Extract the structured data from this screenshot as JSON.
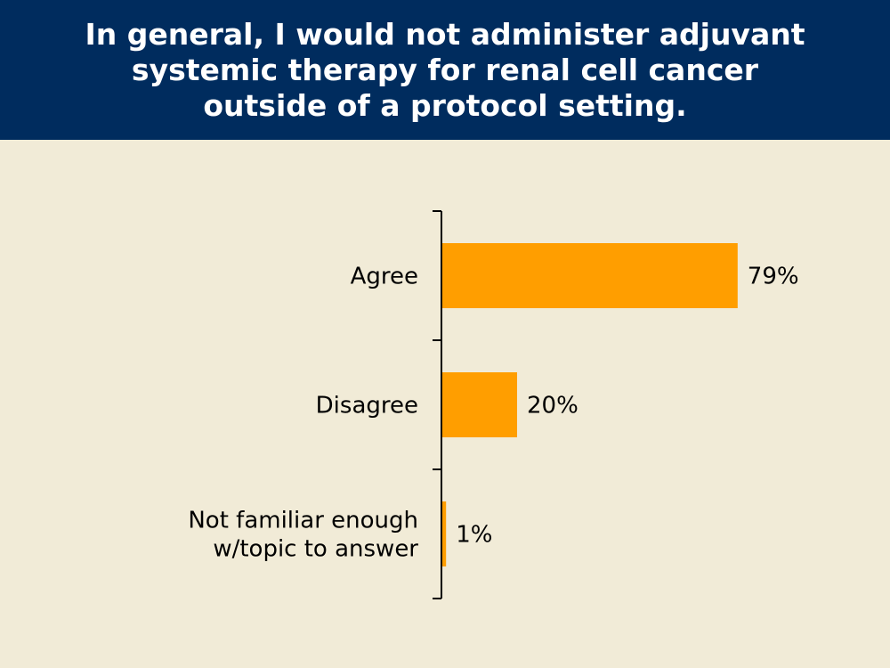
{
  "colors": {
    "header_bg": "#002c5e",
    "background": "#f1ebd7",
    "bar": "#ff9e00",
    "axis": "#000000"
  },
  "chart_data": {
    "type": "bar",
    "orientation": "horizontal",
    "title": "In general, I would not administer adjuvant\nsystemic therapy for renal cell cancer\noutside of a protocol setting.",
    "categories": [
      [
        "Agree"
      ],
      [
        "Disagree"
      ],
      [
        "Not familiar enough",
        "w/topic to answer"
      ]
    ],
    "values": [
      79,
      20,
      1
    ],
    "value_labels": [
      "79%",
      "20%",
      "1%"
    ],
    "xlim": [
      0,
      100
    ],
    "grid": false,
    "legend": "none"
  }
}
